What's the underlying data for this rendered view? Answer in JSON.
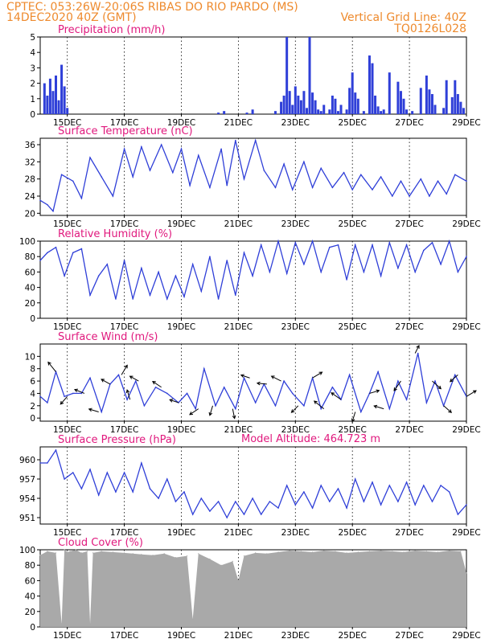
{
  "header": {
    "line1_left": "CPTEC:   053:26W-20:06S  RIBAS DO RIO PARDO (MS)",
    "line2_left": "14DEC2020 40Z (GMT)",
    "line2_right": "Vertical Grid Line: 40Z",
    "line3_right": "TQ0126L028",
    "model_altitude": "Model Altitude: 464.723 m"
  },
  "colors": {
    "header": "#ee8a2d",
    "panel_title": "#e0187d",
    "series": "#2f3fd8",
    "cloud": "#a9a9a9"
  },
  "x_ticks": [
    "15DEC",
    "17DEC",
    "19DEC",
    "21DEC",
    "23DEC",
    "25DEC",
    "27DEC",
    "29DEC"
  ],
  "chart_data": [
    {
      "type": "bar",
      "title": "Precipitation (mm/h)",
      "x_unit": "day of December 2020",
      "xlim": [
        14.05,
        29.0
      ],
      "ylim": [
        0,
        5
      ],
      "yticks": [
        0,
        1,
        2,
        3,
        4,
        5
      ],
      "grid": "vertical dotted at 40Z each day",
      "x": [
        14.2,
        14.3,
        14.4,
        14.5,
        14.6,
        14.7,
        14.8,
        14.9,
        15.0,
        20.3,
        20.5,
        21.3,
        21.5,
        22.3,
        22.5,
        22.6,
        22.7,
        22.8,
        22.9,
        23.0,
        23.1,
        23.2,
        23.3,
        23.4,
        23.5,
        23.6,
        23.7,
        23.8,
        23.9,
        24.0,
        24.2,
        24.3,
        24.4,
        24.5,
        24.6,
        24.8,
        24.9,
        25.0,
        25.1,
        25.2,
        25.4,
        25.6,
        25.7,
        25.8,
        25.9,
        26.0,
        26.1,
        26.3,
        26.6,
        26.7,
        26.8,
        26.9,
        27.1,
        27.4,
        27.6,
        27.7,
        27.8,
        27.9,
        28.2,
        28.3,
        28.5,
        28.6,
        28.7,
        28.8,
        28.9
      ],
      "values": [
        2.0,
        1.2,
        2.3,
        1.5,
        2.5,
        0.9,
        3.2,
        1.8,
        0.4,
        0.1,
        0.2,
        0.1,
        0.3,
        0.2,
        0.8,
        1.2,
        5.0,
        1.5,
        0.6,
        1.8,
        1.2,
        0.9,
        1.5,
        0.4,
        5.0,
        1.4,
        0.9,
        0.3,
        0.2,
        0.6,
        0.3,
        1.2,
        1.0,
        0.2,
        0.6,
        0.3,
        1.7,
        2.7,
        1.4,
        1.0,
        0.2,
        3.8,
        3.3,
        1.2,
        0.5,
        0.2,
        0.3,
        2.7,
        2.1,
        1.5,
        1.0,
        0.3,
        0.2,
        1.7,
        2.5,
        1.6,
        1.3,
        0.6,
        0.4,
        2.2,
        1.1,
        2.2,
        1.3,
        0.8,
        0.4
      ]
    },
    {
      "type": "line",
      "title": "Surface Temperature (nC)",
      "x_unit": "day of December 2020",
      "xlim": [
        14.05,
        29.0
      ],
      "ylim": [
        19.5,
        37.5
      ],
      "yticks": [
        20,
        24,
        28,
        32,
        36
      ],
      "x": [
        14.05,
        14.3,
        14.5,
        14.8,
        15.2,
        15.5,
        15.8,
        16.2,
        16.6,
        17.0,
        17.3,
        17.6,
        17.9,
        18.3,
        18.7,
        19.0,
        19.3,
        19.6,
        20.0,
        20.4,
        20.6,
        20.9,
        21.2,
        21.6,
        21.9,
        22.3,
        22.6,
        22.9,
        23.3,
        23.6,
        23.9,
        24.3,
        24.7,
        25.0,
        25.3,
        25.7,
        26.0,
        26.4,
        26.7,
        27.0,
        27.4,
        27.7,
        28.0,
        28.3,
        28.6,
        29.0
      ],
      "values": [
        23.0,
        22.0,
        20.5,
        29.0,
        27.5,
        23.5,
        33.0,
        28.5,
        24.0,
        35.0,
        28.5,
        35.5,
        30.0,
        36.0,
        29.5,
        35.0,
        26.5,
        33.5,
        26.0,
        35.0,
        26.5,
        37.0,
        28.0,
        37.0,
        30.0,
        26.0,
        31.5,
        25.5,
        32.0,
        26.0,
        30.5,
        26.0,
        29.5,
        25.5,
        29.0,
        25.5,
        28.5,
        24.0,
        27.5,
        24.0,
        28.0,
        24.0,
        27.5,
        24.5,
        29.0,
        27.5
      ]
    },
    {
      "type": "line",
      "title": "Relative Humidity (%)",
      "x_unit": "day of December 2020",
      "xlim": [
        14.05,
        29.0
      ],
      "ylim": [
        0,
        100
      ],
      "yticks": [
        0,
        20,
        40,
        60,
        80,
        100
      ],
      "x": [
        14.05,
        14.3,
        14.6,
        14.9,
        15.2,
        15.5,
        15.8,
        16.1,
        16.4,
        16.7,
        17.0,
        17.3,
        17.6,
        17.9,
        18.2,
        18.5,
        18.8,
        19.1,
        19.4,
        19.7,
        20.0,
        20.3,
        20.6,
        20.9,
        21.2,
        21.5,
        21.8,
        22.1,
        22.4,
        22.7,
        23.0,
        23.3,
        23.6,
        23.9,
        24.2,
        24.5,
        24.8,
        25.1,
        25.4,
        25.7,
        26.0,
        26.3,
        26.6,
        26.9,
        27.2,
        27.5,
        27.8,
        28.1,
        28.4,
        28.7,
        29.0
      ],
      "values": [
        75,
        85,
        92,
        55,
        85,
        90,
        30,
        55,
        70,
        25,
        75,
        25,
        65,
        30,
        60,
        25,
        55,
        28,
        70,
        35,
        80,
        25,
        75,
        30,
        85,
        55,
        95,
        60,
        100,
        58,
        98,
        70,
        100,
        60,
        92,
        95,
        50,
        95,
        60,
        95,
        55,
        98,
        65,
        95,
        60,
        88,
        98,
        70,
        100,
        60,
        80
      ]
    },
    {
      "type": "line",
      "title": "Surface Wind (m/s)",
      "x_unit": "day of December 2020",
      "xlim": [
        14.05,
        29.0
      ],
      "ylim": [
        -0.5,
        12
      ],
      "yticks": [
        0,
        2,
        4,
        6,
        8,
        10
      ],
      "x": [
        14.05,
        14.3,
        14.6,
        14.9,
        15.2,
        15.5,
        15.8,
        16.2,
        16.5,
        16.8,
        17.1,
        17.4,
        17.7,
        18.1,
        18.5,
        18.9,
        19.2,
        19.5,
        19.8,
        20.2,
        20.5,
        20.9,
        21.2,
        21.6,
        21.9,
        22.3,
        22.6,
        22.9,
        23.3,
        23.6,
        23.9,
        24.3,
        24.6,
        24.9,
        25.3,
        25.6,
        25.9,
        26.3,
        26.6,
        26.9,
        27.3,
        27.6,
        27.9,
        28.2,
        28.6,
        29.0
      ],
      "values": [
        3.5,
        2.5,
        7.5,
        3.5,
        4.0,
        4.0,
        6.5,
        1.0,
        5.5,
        7.0,
        3.0,
        6.0,
        2.0,
        5.0,
        4.0,
        2.5,
        4.0,
        1.5,
        8.0,
        2.0,
        5.0,
        1.5,
        6.5,
        2.5,
        5.5,
        2.0,
        6.0,
        4.0,
        2.0,
        6.5,
        1.5,
        5.0,
        3.0,
        7.0,
        1.0,
        4.0,
        7.5,
        1.5,
        6.0,
        3.0,
        10.5,
        2.5,
        6.0,
        2.0,
        7.0,
        3.5
      ],
      "vectors": [
        [
          14.6,
          -0.8,
          1
        ],
        [
          15.0,
          -0.7,
          -0.8
        ],
        [
          15.6,
          -1.0,
          0.4
        ],
        [
          16.1,
          -1.0,
          0.3
        ],
        [
          16.5,
          -0.9,
          0.5
        ],
        [
          16.9,
          0.6,
          1
        ],
        [
          17.2,
          -0.3,
          1
        ],
        [
          17.5,
          -0.9,
          0.5
        ],
        [
          18.3,
          -0.9,
          0.6
        ],
        [
          18.9,
          -0.9,
          0.3
        ],
        [
          19.6,
          -0.9,
          -0.6
        ],
        [
          20.1,
          -0.3,
          -1
        ],
        [
          20.8,
          0.2,
          -1
        ],
        [
          21.4,
          -0.9,
          0.3
        ],
        [
          22.0,
          -1.0,
          0.1
        ],
        [
          22.5,
          -1.0,
          0.5
        ],
        [
          23.1,
          -0.7,
          -0.7
        ],
        [
          23.6,
          1.0,
          0.6
        ],
        [
          24.0,
          -1.0,
          0.8
        ],
        [
          24.6,
          -1.0,
          0.7
        ],
        [
          25.1,
          -0.3,
          -1
        ],
        [
          25.6,
          1.0,
          0.3
        ],
        [
          26.1,
          -1.0,
          0.3
        ],
        [
          26.7,
          -0.7,
          -1
        ],
        [
          27.2,
          0.4,
          0.8
        ],
        [
          27.8,
          0.9,
          -0.8
        ],
        [
          28.2,
          0.8,
          -0.7
        ],
        [
          28.7,
          -0.8,
          -0.7
        ],
        [
          29.0,
          1.0,
          0.6
        ]
      ]
    },
    {
      "type": "line",
      "title": "Surface Pressure (hPa)",
      "x_unit": "day of December 2020",
      "xlim": [
        14.05,
        29.0
      ],
      "ylim": [
        950,
        962
      ],
      "yticks": [
        951,
        954,
        957,
        960
      ],
      "x": [
        14.05,
        14.3,
        14.6,
        14.9,
        15.2,
        15.5,
        15.8,
        16.1,
        16.4,
        16.7,
        17.0,
        17.3,
        17.6,
        17.9,
        18.2,
        18.5,
        18.8,
        19.1,
        19.4,
        19.7,
        20.0,
        20.3,
        20.6,
        20.9,
        21.2,
        21.5,
        21.8,
        22.1,
        22.4,
        22.7,
        23.0,
        23.3,
        23.6,
        23.9,
        24.2,
        24.5,
        24.8,
        25.1,
        25.4,
        25.7,
        26.0,
        26.3,
        26.6,
        26.9,
        27.2,
        27.5,
        27.8,
        28.1,
        28.4,
        28.7,
        29.0
      ],
      "values": [
        959.5,
        959.5,
        961.5,
        957.0,
        958.0,
        955.5,
        958.5,
        954.5,
        958.0,
        955.0,
        958.0,
        955.0,
        959.5,
        955.5,
        954.0,
        957.0,
        953.5,
        955.0,
        951.5,
        954.0,
        952.0,
        953.5,
        951.0,
        953.5,
        951.5,
        954.0,
        951.5,
        953.5,
        952.5,
        956.0,
        953.0,
        955.0,
        952.5,
        956.0,
        953.5,
        955.5,
        952.5,
        957.0,
        953.5,
        956.5,
        953.0,
        956.0,
        953.5,
        956.5,
        953.0,
        956.0,
        953.5,
        956.0,
        955.0,
        951.5,
        953.0
      ]
    },
    {
      "type": "area",
      "title": "Cloud Cover (%)",
      "x_unit": "day of December 2020",
      "xlim": [
        14.05,
        29.0
      ],
      "ylim": [
        0,
        100
      ],
      "yticks": [
        0,
        20,
        40,
        60,
        80,
        100
      ],
      "x": [
        14.05,
        14.3,
        14.6,
        14.8,
        14.9,
        15.0,
        15.1,
        15.3,
        15.5,
        15.7,
        15.8,
        15.9,
        16.2,
        16.6,
        17.0,
        17.3,
        17.6,
        18.0,
        18.4,
        18.8,
        19.2,
        19.4,
        19.6,
        20.0,
        20.4,
        20.8,
        21.0,
        21.2,
        21.6,
        22.0,
        22.4,
        22.8,
        23.2,
        23.6,
        24.0,
        24.4,
        24.8,
        25.2,
        25.6,
        26.0,
        26.4,
        26.8,
        27.2,
        27.6,
        28.0,
        28.4,
        28.8,
        29.0
      ],
      "values": [
        93,
        98,
        96,
        4,
        100,
        97,
        98,
        100,
        96,
        98,
        4,
        96,
        98,
        97,
        96,
        95,
        94,
        93,
        95,
        90,
        92,
        10,
        95,
        88,
        80,
        85,
        60,
        92,
        96,
        95,
        97,
        99,
        98,
        97,
        99,
        98,
        96,
        97,
        98,
        99,
        98,
        97,
        99,
        98,
        97,
        99,
        98,
        70
      ]
    }
  ]
}
